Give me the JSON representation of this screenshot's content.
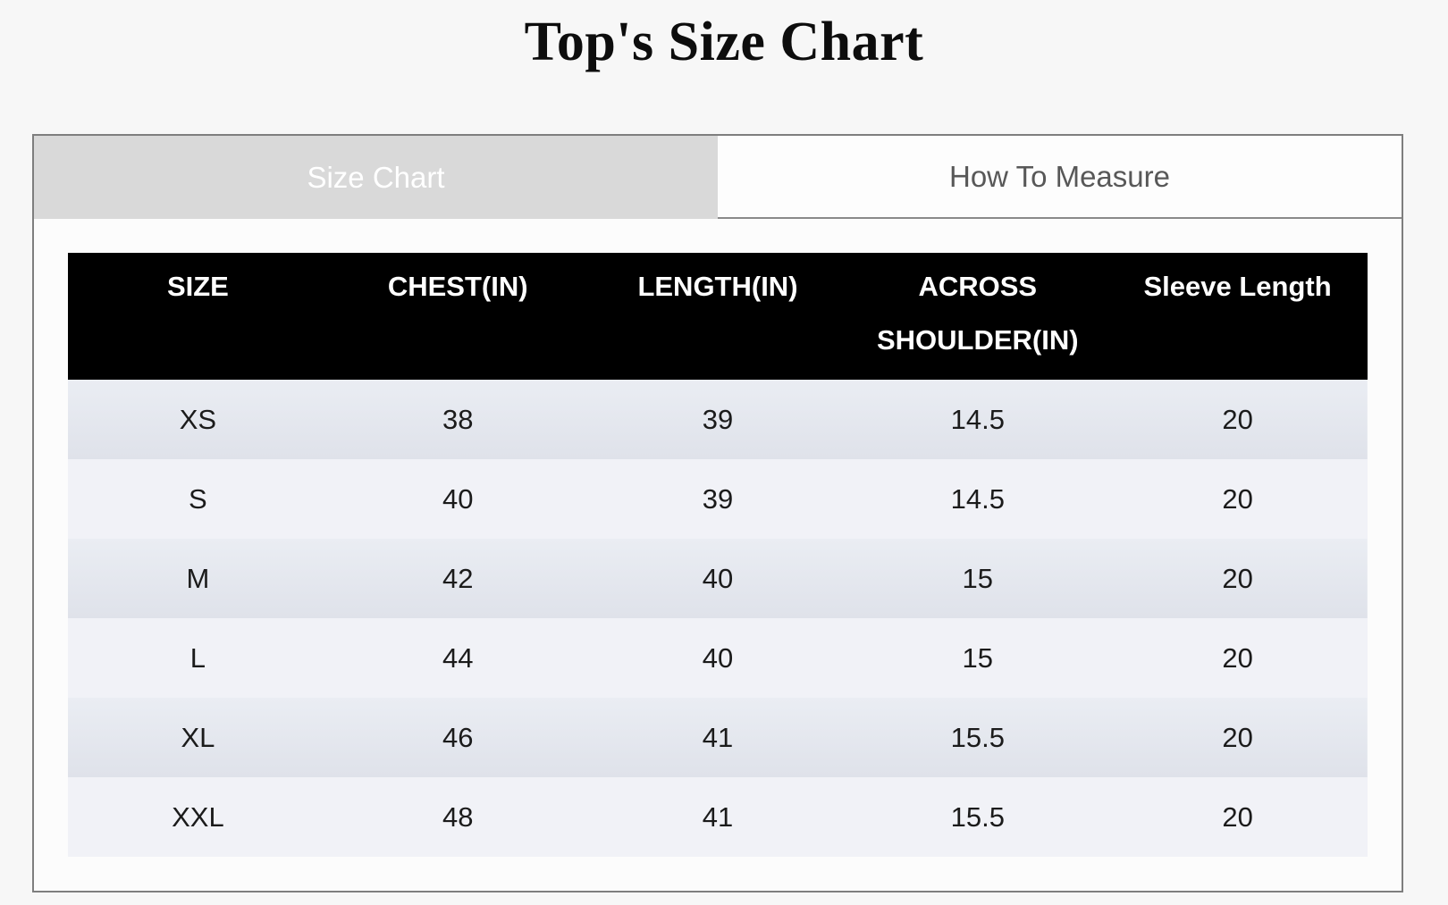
{
  "page": {
    "title": "Top's Size Chart"
  },
  "tabs": [
    {
      "label": "Size Chart",
      "active": true
    },
    {
      "label": "How To Measure",
      "active": false
    }
  ],
  "table": {
    "columns": [
      "SIZE",
      "CHEST(IN)",
      "LENGTH(IN)",
      "ACROSS SHOULDER(IN)",
      "Sleeve Length"
    ],
    "rows": [
      [
        "XS",
        "38",
        "39",
        "14.5",
        "20"
      ],
      [
        "S",
        "40",
        "39",
        "14.5",
        "20"
      ],
      [
        "M",
        "42",
        "40",
        "15",
        "20"
      ],
      [
        "L",
        "44",
        "40",
        "15",
        "20"
      ],
      [
        "XL",
        "46",
        "41",
        "15.5",
        "20"
      ],
      [
        "XXL",
        "48",
        "41",
        "15.5",
        "20"
      ]
    ]
  },
  "colors": {
    "page_bg": "#f7f7f7",
    "panel_bg": "#fcfcfc",
    "panel_border": "#7e7e7e",
    "tab_active_bg": "#d9d9d9",
    "tab_active_text": "#ffffff",
    "tab_inactive_bg": "#fdfdfd",
    "tab_inactive_text": "#585858",
    "header_bg": "#000000",
    "header_text": "#ffffff",
    "row_odd_top": "#eaedf3",
    "row_odd_bottom": "#dfe2ea",
    "row_even": "#f1f2f7",
    "cell_text": "#1b1b1b",
    "title_text": "#0d0d0d"
  }
}
